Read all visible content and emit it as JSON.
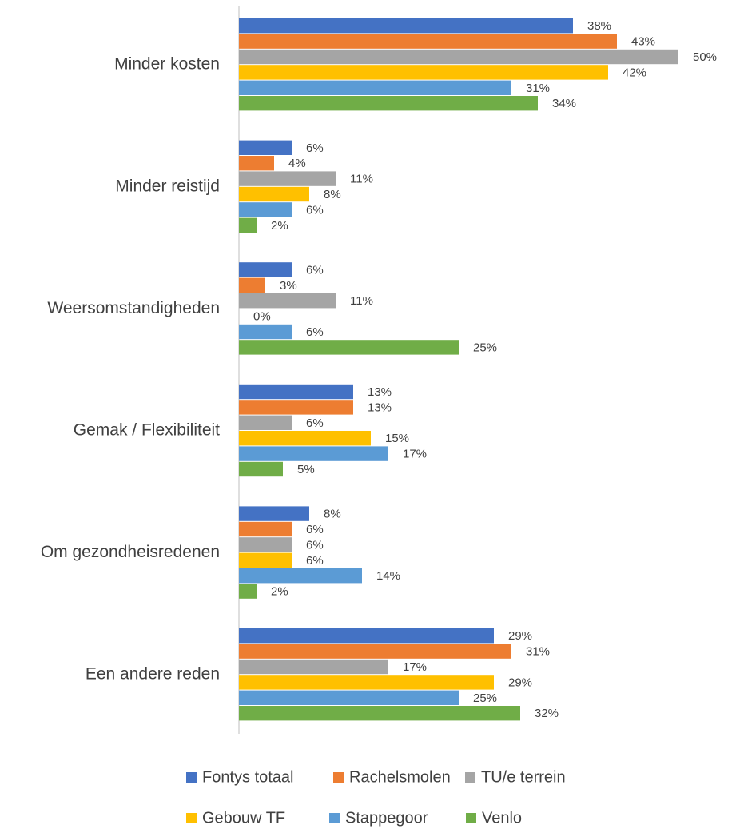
{
  "chart_data": {
    "type": "hbar",
    "categories": [
      "Minder kosten",
      "Minder reistijd",
      "Weersomstandigheden",
      "Gemak / Flexibiliteit",
      "Om gezondheisredenen",
      "Een andere reden"
    ],
    "series": [
      {
        "name": "Fontys totaal",
        "color": "#4472c4",
        "values": [
          38,
          6,
          6,
          13,
          8,
          29
        ],
        "value_labels": [
          "38%",
          "6%",
          "6%",
          "13%",
          "8%",
          "29%"
        ]
      },
      {
        "name": "Rachelsmolen",
        "color": "#ed7d31",
        "values": [
          43,
          4,
          3,
          13,
          6,
          31
        ],
        "value_labels": [
          "43%",
          "4%",
          "3%",
          "13%",
          "6%",
          "31%"
        ]
      },
      {
        "name": "TU/e terrein",
        "color": "#a5a5a5",
        "values": [
          50,
          11,
          11,
          6,
          6,
          17
        ],
        "value_labels": [
          "50%",
          "11%",
          "11%",
          "6%",
          "6%",
          "17%"
        ]
      },
      {
        "name": "Gebouw TF",
        "color": "#ffc000",
        "values": [
          42,
          8,
          0,
          15,
          6,
          29
        ],
        "value_labels": [
          "42%",
          "8%",
          "0%",
          "15%",
          "6%",
          "29%"
        ]
      },
      {
        "name": "Stappegoor",
        "color": "#5b9bd5",
        "values": [
          31,
          6,
          6,
          17,
          14,
          25
        ],
        "value_labels": [
          "31%",
          "6%",
          "6%",
          "17%",
          "14%",
          "25%"
        ]
      },
      {
        "name": "Venlo",
        "color": "#70ad47",
        "values": [
          34,
          2,
          25,
          5,
          2,
          32
        ],
        "value_labels": [
          "34%",
          "2%",
          "25%",
          "5%",
          "2%",
          "32%"
        ]
      }
    ],
    "xlim": [
      0,
      50
    ]
  }
}
